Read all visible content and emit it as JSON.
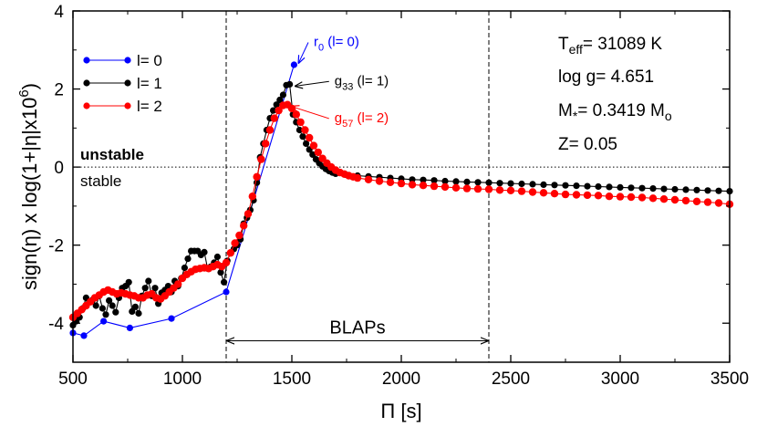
{
  "chart_data": {
    "type": "line",
    "xlabel": "Π [s]",
    "ylabel": "sign(η) x log(1+|η|x10",
    "ylabel_sup": "6",
    "ylabel_close": ")",
    "xlim": [
      500,
      3500
    ],
    "ylim": [
      -5,
      4
    ],
    "xticks": [
      500,
      1000,
      1500,
      2000,
      2500,
      3000,
      3500
    ],
    "yticks": [
      -4,
      -2,
      0,
      2,
      4
    ],
    "xtick_labels": [
      "500",
      "1000",
      "1500",
      "2000",
      "2500",
      "3000",
      "3500"
    ],
    "ytick_labels": [
      "-4",
      "-2",
      "0",
      "2",
      "4"
    ],
    "grid": false,
    "legend_position": "top-left",
    "zero_line": {
      "y": 0,
      "style": "dotted",
      "label_above": "unstable",
      "label_below": "stable"
    },
    "vertical_lines": [
      1200,
      2400
    ],
    "range_arrow": {
      "x0": 1200,
      "x1": 2400,
      "y": -4.45,
      "label": "BLAPs"
    },
    "series": [
      {
        "name": "l= 0",
        "color": "#0000ff",
        "x": [
          500,
          550,
          640,
          760,
          950,
          1200,
          1510
        ],
        "y": [
          -4.25,
          -4.32,
          -3.95,
          -4.12,
          -3.88,
          -3.2,
          2.62
        ]
      },
      {
        "name": "l= 1",
        "color": "#000000",
        "x": [
          500,
          515,
          530,
          545,
          560,
          575,
          590,
          605,
          620,
          635,
          650,
          665,
          680,
          695,
          710,
          725,
          740,
          755,
          770,
          785,
          800,
          815,
          830,
          845,
          860,
          875,
          890,
          905,
          920,
          935,
          950,
          965,
          980,
          995,
          1010,
          1025,
          1040,
          1055,
          1070,
          1085,
          1100,
          1115,
          1130,
          1145,
          1160,
          1175,
          1190,
          1205,
          1220,
          1235,
          1250,
          1265,
          1280,
          1295,
          1310,
          1325,
          1340,
          1355,
          1370,
          1385,
          1400,
          1415,
          1430,
          1445,
          1460,
          1475,
          1490,
          1505,
          1520,
          1535,
          1550,
          1565,
          1580,
          1595,
          1610,
          1625,
          1640,
          1655,
          1670,
          1685,
          1700,
          1750,
          1800,
          1850,
          1900,
          1950,
          2000,
          2050,
          2100,
          2150,
          2200,
          2250,
          2300,
          2350,
          2400,
          2450,
          2500,
          2550,
          2600,
          2650,
          2700,
          2750,
          2800,
          2850,
          2900,
          2950,
          3000,
          3050,
          3100,
          3150,
          3200,
          3250,
          3300,
          3350,
          3400,
          3450,
          3500
        ],
        "y": [
          -4.05,
          -3.95,
          -3.85,
          -3.62,
          -3.35,
          -3.45,
          -3.4,
          -3.55,
          -3.3,
          -3.62,
          -3.78,
          -3.42,
          -3.55,
          -3.72,
          -3.35,
          -3.1,
          -3.05,
          -2.95,
          -3.7,
          -3.58,
          -3.75,
          -3.3,
          -3.1,
          -2.92,
          -3.3,
          -3.1,
          -3.5,
          -3.22,
          -3.15,
          -3.05,
          -3.2,
          -2.92,
          -3.05,
          -2.85,
          -2.58,
          -2.35,
          -2.15,
          -2.15,
          -2.15,
          -2.25,
          -2.18,
          -2.6,
          -2.55,
          -2.45,
          -2.3,
          -2.7,
          -2.95,
          -2.4,
          -2.2,
          -2.1,
          -2.0,
          -1.85,
          -1.45,
          -1.3,
          -1.1,
          -0.85,
          -0.4,
          0.25,
          0.6,
          0.95,
          1.25,
          1.45,
          1.6,
          1.72,
          1.85,
          2.1,
          2.12,
          1.35,
          1.15,
          0.95,
          0.78,
          0.6,
          0.45,
          0.32,
          0.2,
          0.1,
          0.02,
          -0.05,
          -0.1,
          -0.14,
          -0.17,
          -0.2,
          -0.22,
          -0.24,
          -0.26,
          -0.28,
          -0.3,
          -0.32,
          -0.33,
          -0.34,
          -0.36,
          -0.37,
          -0.38,
          -0.39,
          -0.4,
          -0.41,
          -0.42,
          -0.43,
          -0.44,
          -0.45,
          -0.46,
          -0.47,
          -0.48,
          -0.49,
          -0.5,
          -0.51,
          -0.52,
          -0.53,
          -0.54,
          -0.55,
          -0.56,
          -0.57,
          -0.58,
          -0.59,
          -0.6,
          -0.61,
          -0.62
        ]
      },
      {
        "name": "l= 2",
        "color": "#ff0000",
        "x": [
          500,
          520,
          540,
          560,
          580,
          600,
          620,
          640,
          660,
          680,
          700,
          720,
          740,
          760,
          780,
          800,
          820,
          840,
          860,
          880,
          900,
          920,
          940,
          960,
          980,
          1000,
          1020,
          1040,
          1060,
          1080,
          1100,
          1120,
          1140,
          1160,
          1180,
          1200,
          1220,
          1240,
          1260,
          1280,
          1300,
          1320,
          1340,
          1360,
          1380,
          1400,
          1420,
          1440,
          1460,
          1480,
          1500,
          1520,
          1540,
          1560,
          1580,
          1600,
          1620,
          1640,
          1660,
          1680,
          1700,
          1720,
          1740,
          1760,
          1780,
          1800,
          1850,
          1900,
          1950,
          2000,
          2050,
          2100,
          2150,
          2200,
          2250,
          2300,
          2350,
          2400,
          2450,
          2500,
          2550,
          2600,
          2650,
          2700,
          2750,
          2800,
          2850,
          2900,
          2950,
          3000,
          3050,
          3100,
          3150,
          3200,
          3250,
          3300,
          3350,
          3400,
          3450,
          3500
        ],
        "y": [
          -3.85,
          -3.75,
          -3.65,
          -3.55,
          -3.45,
          -3.35,
          -3.28,
          -3.2,
          -3.15,
          -3.2,
          -3.25,
          -3.22,
          -3.25,
          -3.28,
          -3.3,
          -3.35,
          -3.35,
          -3.28,
          -3.25,
          -3.35,
          -3.38,
          -3.3,
          -3.2,
          -3.1,
          -3.0,
          -2.85,
          -2.75,
          -2.68,
          -2.62,
          -2.6,
          -2.58,
          -2.6,
          -2.55,
          -2.5,
          -2.55,
          -2.45,
          -2.2,
          -1.95,
          -1.75,
          -1.5,
          -1.2,
          -0.75,
          -0.25,
          0.2,
          0.6,
          0.95,
          1.25,
          1.45,
          1.58,
          1.6,
          1.5,
          1.35,
          1.15,
          0.95,
          0.75,
          0.55,
          0.38,
          0.22,
          0.1,
          0.0,
          -0.08,
          -0.14,
          -0.18,
          -0.22,
          -0.25,
          -0.28,
          -0.32,
          -0.36,
          -0.39,
          -0.42,
          -0.45,
          -0.47,
          -0.49,
          -0.51,
          -0.53,
          -0.55,
          -0.56,
          -0.57,
          -0.59,
          -0.6,
          -0.62,
          -0.64,
          -0.66,
          -0.68,
          -0.7,
          -0.71,
          -0.72,
          -0.73,
          -0.75,
          -0.76,
          -0.77,
          -0.78,
          -0.8,
          -0.82,
          -0.84,
          -0.86,
          -0.88,
          -0.9,
          -0.92,
          -0.95
        ]
      }
    ],
    "annotations": [
      {
        "main": "r",
        "sub": "0",
        "rest": " (l= 0)",
        "color": "#0000ff",
        "tip": [
          1510,
          2.62
        ],
        "text_at": [
          1600,
          3.1
        ]
      },
      {
        "main": "g",
        "sub": "33",
        "rest": " (l= 1)",
        "color": "#000000",
        "tip": [
          1495,
          2.12
        ],
        "text_at": [
          1695,
          2.1
        ]
      },
      {
        "main": "g",
        "sub": "57",
        "rest": " (l= 2)",
        "color": "#ff0000",
        "tip": [
          1478,
          1.6
        ],
        "text_at": [
          1695,
          1.15
        ]
      }
    ],
    "model_parameters": {
      "teff_label": "T",
      "teff_sub": "eff",
      "teff_value": "= 31089 K",
      "logg": "log g= 4.651",
      "mass_label": "M",
      "mass_sub": "*",
      "mass_value": "= 0.3419 M",
      "mass_unit_sub": "o",
      "z": "Z= 0.05"
    }
  }
}
